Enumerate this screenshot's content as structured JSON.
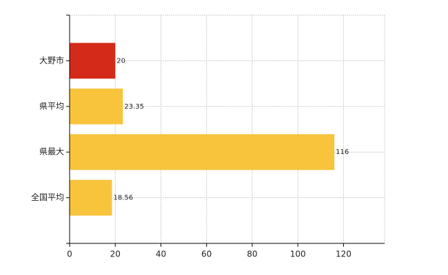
{
  "chart_data": {
    "type": "bar",
    "orientation": "horizontal",
    "categories": [
      "大野市",
      "県平均",
      "県最大",
      "全国平均"
    ],
    "values": [
      20,
      23.35,
      116,
      18.56
    ],
    "colors": [
      "#d42a1a",
      "#f8c43c",
      "#f8c43c",
      "#f8c43c"
    ],
    "xlim": [
      0,
      138
    ],
    "xticks": [
      0,
      20,
      40,
      60,
      80,
      100,
      120
    ],
    "grid": true
  }
}
